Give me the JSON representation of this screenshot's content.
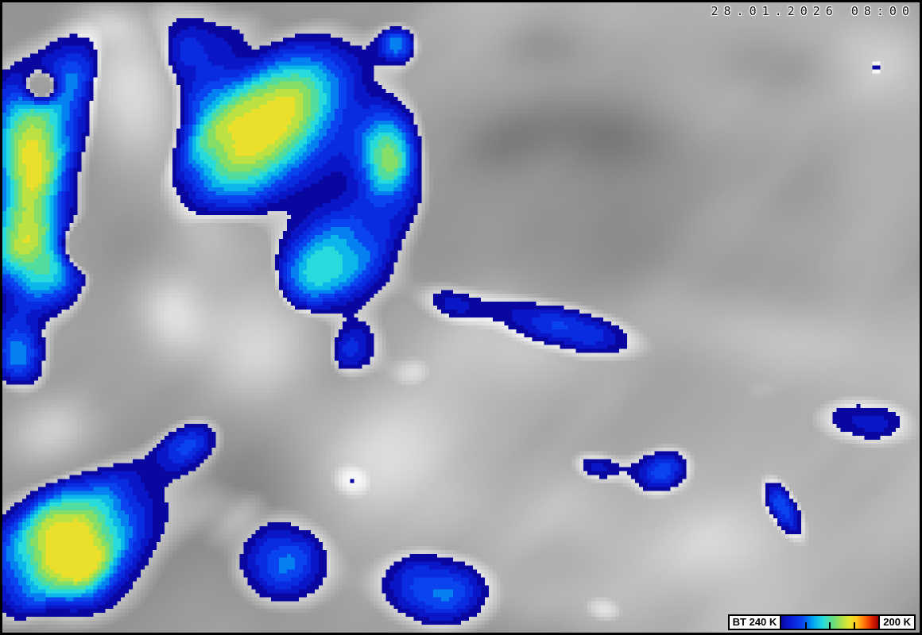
{
  "header": {
    "timestamp": "28.01.2026 08:00"
  },
  "legend": {
    "left_label": "BT 240 K",
    "right_label": "200 K",
    "tick_positions": [
      0.25,
      0.5,
      0.75
    ],
    "box_background": "#ffffff",
    "border_color": "#000000",
    "gradient_stops": [
      {
        "p": 0.0,
        "c": "#0a06a0"
      },
      {
        "p": 0.1,
        "c": "#0a1ed8"
      },
      {
        "p": 0.22,
        "c": "#0a46f0"
      },
      {
        "p": 0.33,
        "c": "#00a8f0"
      },
      {
        "p": 0.43,
        "c": "#28dcdc"
      },
      {
        "p": 0.53,
        "c": "#64dc82"
      },
      {
        "p": 0.62,
        "c": "#aae14b"
      },
      {
        "p": 0.7,
        "c": "#e6e62e"
      },
      {
        "p": 0.78,
        "c": "#ffc81e"
      },
      {
        "p": 0.86,
        "c": "#ff6e0a"
      },
      {
        "p": 0.93,
        "c": "#e12800"
      },
      {
        "p": 1.0,
        "c": "#a00000"
      }
    ]
  },
  "frame": {
    "border_color": "#000000"
  }
}
